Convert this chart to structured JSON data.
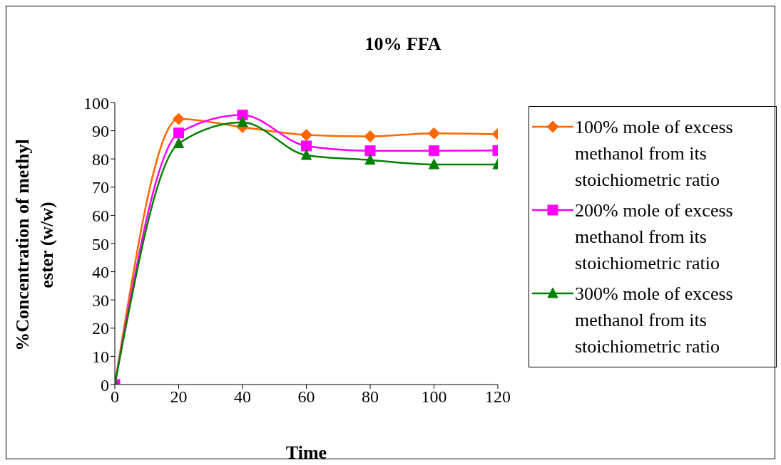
{
  "chart_data": {
    "type": "line",
    "title": "10% FFA",
    "xlabel": "Time",
    "ylabel": "%Concentration of methyl ester (w/w)",
    "x": [
      0,
      20,
      40,
      60,
      80,
      100,
      120
    ],
    "xlim": [
      0,
      120
    ],
    "xticks": [
      0,
      20,
      40,
      60,
      80,
      100,
      120
    ],
    "ylim": [
      0,
      100
    ],
    "yticks": [
      0,
      10,
      20,
      30,
      40,
      50,
      60,
      70,
      80,
      90,
      100
    ],
    "grid": false,
    "legend": "right",
    "line_style": "solid",
    "series": [
      {
        "name": "100% mole of excess methanol from its stoichiometric ratio",
        "color": "#ff6600",
        "marker": "diamond",
        "values": [
          0,
          94.2,
          91.3,
          88.5,
          88.0,
          89.1,
          88.8
        ]
      },
      {
        "name": "200% mole of excess methanol from its stoichiometric ratio",
        "color": "#ff00ff",
        "marker": "square",
        "values": [
          0,
          89.2,
          95.6,
          84.6,
          82.9,
          82.9,
          83.0
        ]
      },
      {
        "name": "300% mole of excess methanol from its stoichiometric ratio",
        "color": "#008000",
        "marker": "triangle",
        "values": [
          0,
          85.5,
          93.0,
          81.3,
          79.6,
          78.0,
          78.0
        ]
      }
    ]
  }
}
